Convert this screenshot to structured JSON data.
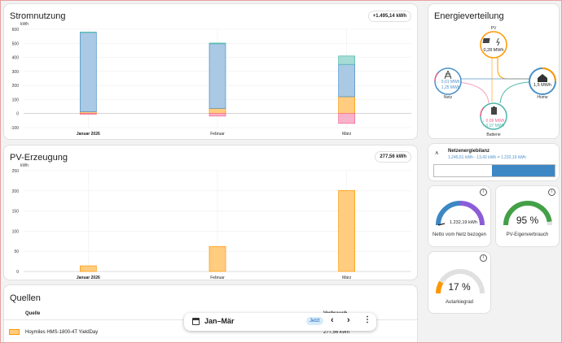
{
  "colors": {
    "grid": "#4a90c8",
    "pv": "#ff9800",
    "battery_in": "#4db6ac",
    "battery_out": "#f06292",
    "netz_bar": "#3c87c4",
    "eigen": "#43a047",
    "autarkie": "#ff9800",
    "netto_purple": "#8c5cd8"
  },
  "stromnutzung": {
    "title": "Stromnutzung",
    "total": "+1.495,14 kWh",
    "chart_data": {
      "type": "bar",
      "stacked": true,
      "unit": "kWh",
      "categories": [
        "Januar 2026",
        "Februar",
        "März"
      ],
      "ylim": [
        -100,
        600
      ],
      "yticks": [
        -100,
        0,
        100,
        200,
        300,
        400,
        500,
        600
      ],
      "series": [
        {
          "key": "grid",
          "values": [
            565,
            460,
            230
          ]
        },
        {
          "key": "pv",
          "values": [
            13,
            37,
            120
          ]
        },
        {
          "key": "battery_in",
          "values": [
            2,
            5,
            60
          ]
        },
        {
          "key": "battery_out",
          "values": [
            -5,
            -18,
            -70
          ]
        }
      ]
    }
  },
  "pv_erzeugung": {
    "title": "PV-Erzeugung",
    "total": "277,56 kWh",
    "chart_data": {
      "type": "bar",
      "unit": "kWh",
      "categories": [
        "Januar 2026",
        "Februar",
        "März"
      ],
      "ylim": [
        0,
        250
      ],
      "yticks": [
        0,
        50,
        100,
        150,
        200,
        250
      ],
      "series": [
        {
          "key": "pv",
          "values": [
            14,
            62,
            201
          ]
        }
      ]
    }
  },
  "quellen": {
    "title": "Quellen",
    "col_source": "Quelle",
    "col_value": "Verbrauch",
    "row_name": "Hoymiles HMS-1800-4T YieldDay",
    "row_value": "277,56 kWh"
  },
  "energieverteilung": {
    "title": "Energieverteilung",
    "pv_label": "PV",
    "pv_value": "0,28 MWh",
    "netz_label": "Netz",
    "netz_out": "0,01 MWh",
    "netz_in": "1,25 MWh",
    "home_label": "Home",
    "home_value": "1,5 MWh",
    "batterie_label": "Batterie",
    "batterie_in": "0,09 MWh",
    "batterie_out": "0,07 MWh"
  },
  "netzenergiebilanz": {
    "title": "Netzenergiebilanz",
    "formula": "1.245,61 kWh - 13,42 kWh = 1.232,19 kWh",
    "bar_fraction": 0.52
  },
  "gauges": {
    "netto_value": "1.232,19 kWh",
    "netto_label": "Netto vom Netz bezogen",
    "eigen_value": "95 %",
    "eigen_label": "PV-Eigenverbrauch",
    "eigen_fraction": 0.95,
    "autarkie_value": "17 %",
    "autarkie_label": "Autarkiegrad",
    "autarkie_fraction": 0.17
  },
  "datebar": {
    "range": "Jan–Mär",
    "now_button": "Jetzt"
  }
}
